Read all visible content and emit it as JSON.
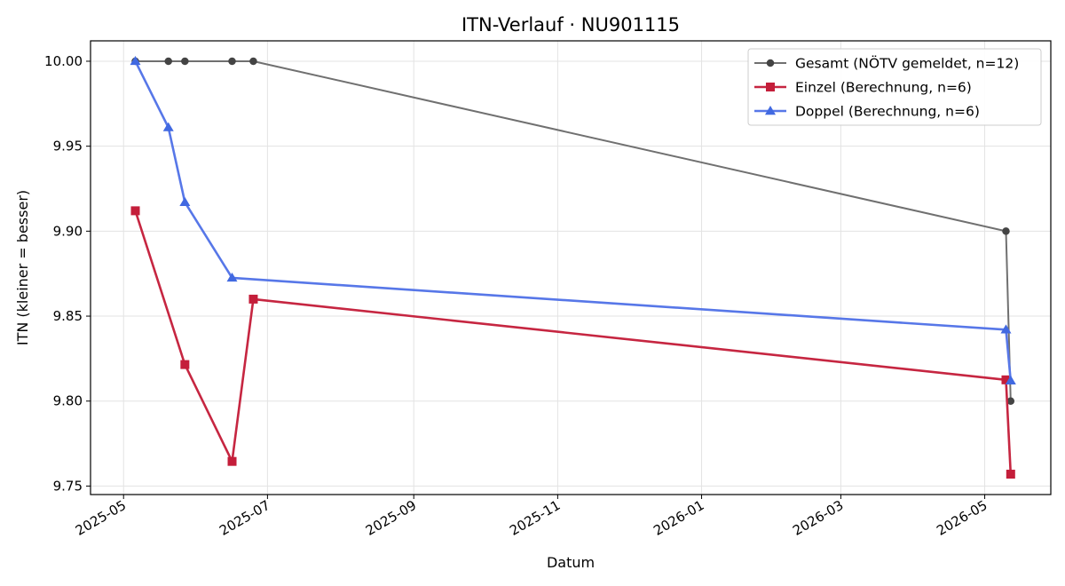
{
  "chart_data": {
    "type": "line",
    "title": "ITN-Verlauf · NU901115",
    "xlabel": "Datum",
    "ylabel": "ITN  (kleiner = besser)",
    "x_tick_labels": [
      "2025-05",
      "2025-07",
      "2025-09",
      "2025-11",
      "2026-01",
      "2026-03",
      "2026-05"
    ],
    "x_tick_dates": [
      "2025-05-01",
      "2025-07-01",
      "2025-09-01",
      "2025-11-01",
      "2026-01-01",
      "2026-03-01",
      "2026-05-01"
    ],
    "y_tick_labels": [
      "9.75",
      "9.80",
      "9.85",
      "9.90",
      "9.95",
      "10.00"
    ],
    "y_ticks": [
      9.75,
      9.8,
      9.85,
      9.9,
      9.95,
      10.0
    ],
    "xlim": [
      "2025-04-17",
      "2026-05-29"
    ],
    "ylim": [
      9.745,
      10.012
    ],
    "grid": true,
    "legend_position": "top-right",
    "series": [
      {
        "name": "Gesamt (NÖTV gemeldet, n=12)",
        "color": "#707070",
        "marker_color": "#444444",
        "marker": "circle",
        "points": [
          {
            "x": "2025-05-06",
            "y": 10.0
          },
          {
            "x": "2025-05-20",
            "y": 10.0
          },
          {
            "x": "2025-05-27",
            "y": 10.0
          },
          {
            "x": "2025-06-16",
            "y": 10.0
          },
          {
            "x": "2025-06-25",
            "y": 10.0
          },
          {
            "x": "2026-05-10",
            "y": 9.9
          },
          {
            "x": "2026-05-12",
            "y": 9.8
          }
        ]
      },
      {
        "name": "Einzel (Berechnung, n=6)",
        "color": "#c62641",
        "marker_color": "#c41e3a",
        "marker": "square",
        "points": [
          {
            "x": "2025-05-06",
            "y": 9.912
          },
          {
            "x": "2025-05-27",
            "y": 9.8215
          },
          {
            "x": "2025-06-16",
            "y": 9.7645
          },
          {
            "x": "2025-06-25",
            "y": 9.86
          },
          {
            "x": "2026-05-10",
            "y": 9.8125
          },
          {
            "x": "2026-05-12",
            "y": 9.757
          }
        ]
      },
      {
        "name": "Doppel (Berechnung, n=6)",
        "color": "#5777e8",
        "marker_color": "#4169e1",
        "marker": "triangle",
        "points": [
          {
            "x": "2025-05-06",
            "y": 10.0
          },
          {
            "x": "2025-05-20",
            "y": 9.961
          },
          {
            "x": "2025-05-27",
            "y": 9.917
          },
          {
            "x": "2025-06-16",
            "y": 9.8725
          },
          {
            "x": "2026-05-10",
            "y": 9.842
          },
          {
            "x": "2026-05-12",
            "y": 9.812
          }
        ]
      }
    ]
  }
}
